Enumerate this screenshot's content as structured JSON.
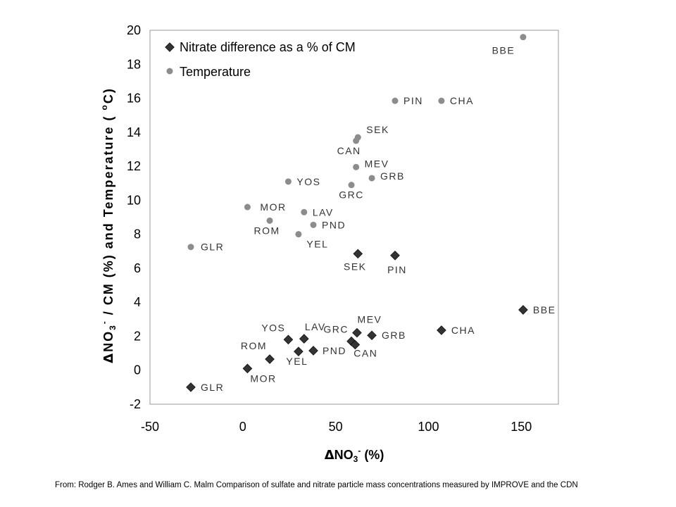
{
  "chart_data": {
    "type": "scatter",
    "xlim": [
      -50,
      170
    ],
    "ylim": [
      -2,
      20
    ],
    "x_ticks": [
      "-50",
      "0",
      "50",
      "100",
      "150"
    ],
    "y_ticks": [
      "-2",
      "0",
      "2",
      "4",
      "6",
      "8",
      "10",
      "12",
      "14",
      "16",
      "18",
      "20"
    ],
    "grid": false,
    "legend_position": "top-left",
    "xlabel": {
      "delta": "Δ",
      "main": "NO",
      "sub": "3",
      "sup": "-",
      "rest": " (%)"
    },
    "ylabel": {
      "delta": "Δ",
      "main": "NO",
      "sub": "3",
      "sup": "-",
      "rest": " / CM (%) and Temperature (   ",
      "deg": "o",
      "end": "C)"
    },
    "series": [
      {
        "name": "Nitrate difference as a % of CM",
        "marker": "diamond",
        "color": "#333333",
        "points": [
          {
            "label": "GLR",
            "x": -28,
            "y": -1.0
          },
          {
            "label": "MOR",
            "x": 2.5,
            "y": 0.1
          },
          {
            "label": "ROM",
            "x": 14.5,
            "y": 0.65
          },
          {
            "label": "YEL",
            "x": 30,
            "y": 1.1
          },
          {
            "label": "PND",
            "x": 38,
            "y": 1.15
          },
          {
            "label": "YOS",
            "x": 24.5,
            "y": 1.8
          },
          {
            "label": "LAV",
            "x": 33,
            "y": 1.85
          },
          {
            "label": "GRC",
            "x": 58.5,
            "y": 1.7
          },
          {
            "label": "CAN",
            "x": 60.5,
            "y": 1.5
          },
          {
            "label": "MEV",
            "x": 61.5,
            "y": 2.2
          },
          {
            "label": "GRB",
            "x": 69.5,
            "y": 2.05
          },
          {
            "label": "CHA",
            "x": 107,
            "y": 2.35
          },
          {
            "label": "BBE",
            "x": 151,
            "y": 3.55
          },
          {
            "label": "SEK",
            "x": 62,
            "y": 6.85
          },
          {
            "label": "PIN",
            "x": 82,
            "y": 6.75
          }
        ]
      },
      {
        "name": "Temperature",
        "marker": "circle",
        "color": "#8c8c8c",
        "points": [
          {
            "label": "GLR",
            "x": -28,
            "y": 7.25
          },
          {
            "label": "MOR",
            "x": 2.5,
            "y": 9.6
          },
          {
            "label": "ROM",
            "x": 14.5,
            "y": 8.8
          },
          {
            "label": "YEL",
            "x": 30,
            "y": 8.0
          },
          {
            "label": "PND",
            "x": 38,
            "y": 8.55
          },
          {
            "label": "LAV",
            "x": 33,
            "y": 9.3
          },
          {
            "label": "YOS",
            "x": 24.5,
            "y": 11.1
          },
          {
            "label": "GRC",
            "x": 58.5,
            "y": 10.9
          },
          {
            "label": "MEV",
            "x": 61,
            "y": 11.95
          },
          {
            "label": "GRB",
            "x": 69.5,
            "y": 11.3
          },
          {
            "label": "CAN",
            "x": 61,
            "y": 13.5
          },
          {
            "label": "SEK",
            "x": 62,
            "y": 13.7
          },
          {
            "label": "PIN",
            "x": 82,
            "y": 15.85
          },
          {
            "label": "CHA",
            "x": 107,
            "y": 15.85
          },
          {
            "label": "BBE",
            "x": 151,
            "y": 19.6
          }
        ]
      }
    ]
  },
  "source_note": "From: Rodger B. Ames and  William C. Malm  Comparison of sulfate and nitrate particle mass concentrations measured by IMPROVE  and the CDN"
}
